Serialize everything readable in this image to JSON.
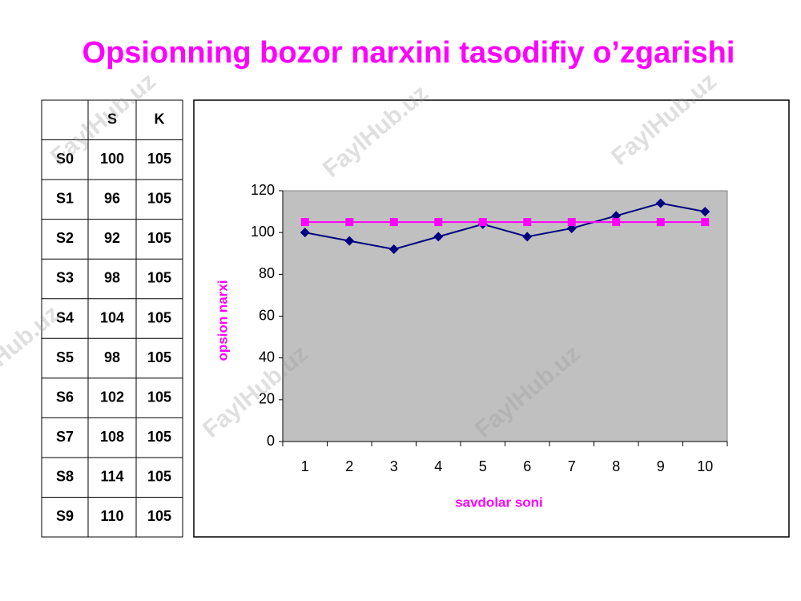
{
  "title": "Opsionning bozor narxini tasodifiy o’zgarishi",
  "watermark": "FaylHub.uz",
  "table": {
    "header": [
      "S",
      "K"
    ],
    "rows": [
      [
        "S0",
        100,
        105
      ],
      [
        "S1",
        96,
        105
      ],
      [
        "S2",
        92,
        105
      ],
      [
        "S3",
        98,
        105
      ],
      [
        "S4",
        104,
        105
      ],
      [
        "S5",
        98,
        105
      ],
      [
        "S6",
        102,
        105
      ],
      [
        "S7",
        108,
        105
      ],
      [
        "S8",
        114,
        105
      ],
      [
        "S9",
        110,
        105
      ]
    ]
  },
  "chart_data": {
    "type": "line",
    "x_label": "savdolar soni",
    "y_label": "opsion narxi",
    "categories": [
      "1",
      "2",
      "3",
      "4",
      "5",
      "6",
      "7",
      "8",
      "9",
      "10"
    ],
    "series": [
      {
        "color": "#000080",
        "marker": "diamond",
        "values": [
          100,
          96,
          92,
          98,
          104,
          98,
          102,
          108,
          114,
          110
        ]
      },
      {
        "color": "#ff00ff",
        "marker": "square",
        "values": [
          105,
          105,
          105,
          105,
          105,
          105,
          105,
          105,
          105,
          105
        ]
      }
    ],
    "ylim": [
      0,
      120
    ],
    "yticks": [
      0,
      20,
      40,
      60,
      80,
      100,
      120
    ],
    "plot_background": "#c0c0c0"
  }
}
